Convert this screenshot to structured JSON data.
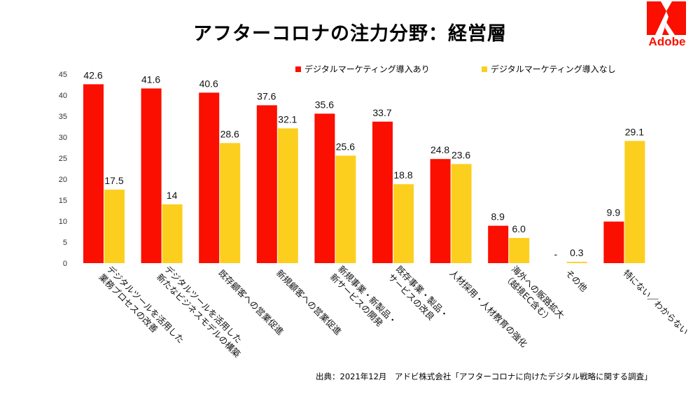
{
  "page": {
    "title": "アフターコロナの注力分野：経営層",
    "logo_text": "Adobe",
    "source": "出典：2021年12月　アドビ株式会社「アフターコロナに向けたデジタル戦略に関する調査」"
  },
  "colors": {
    "series_with": "#fa0f00",
    "series_without": "#fccf1f",
    "brand": "#fa0f00"
  },
  "chart_data": {
    "type": "bar",
    "title": "アフターコロナの注力分野：経営層",
    "xlabel": "",
    "ylabel": "",
    "ylim": [
      0,
      45
    ],
    "yticks": [
      0,
      5,
      10,
      15,
      20,
      25,
      30,
      35,
      40,
      45
    ],
    "grid": false,
    "legend_position": "top-right",
    "categories": [
      [
        "デジタルツールを活用した",
        "業務プロセスの改善"
      ],
      [
        "デジタルツールを活用した",
        "新たなビジネスモデルの構築"
      ],
      [
        "既存顧客への営業促進"
      ],
      [
        "新規顧客への営業促進"
      ],
      [
        "新規事業・新製品・",
        "新サービスの開発"
      ],
      [
        "既存事業・製品・",
        "サービスの改良"
      ],
      [
        "人材採用・人材教育の強化"
      ],
      [
        "海外への販路拡大",
        "（越境EC含む）"
      ],
      [
        "その他"
      ],
      [
        "特にない／わからない"
      ]
    ],
    "series": [
      {
        "name": "デジタルマーケティング導入あり",
        "color": "#fa0f00",
        "values": [
          42.6,
          41.6,
          40.6,
          37.6,
          35.6,
          33.7,
          24.8,
          8.9,
          null,
          9.9
        ],
        "labels": [
          "42.6",
          "41.6",
          "40.6",
          "37.6",
          "35.6",
          "33.7",
          "24.8",
          "8.9",
          "-",
          "9.9"
        ]
      },
      {
        "name": "デジタルマーケティング導入なし",
        "color": "#fccf1f",
        "values": [
          17.5,
          14,
          28.6,
          32.1,
          25.6,
          18.8,
          23.6,
          6.0,
          0.3,
          29.1
        ],
        "labels": [
          "17.5",
          "14",
          "28.6",
          "32.1",
          "25.6",
          "18.8",
          "23.6",
          "6.0",
          "0.3",
          "29.1"
        ]
      }
    ]
  }
}
